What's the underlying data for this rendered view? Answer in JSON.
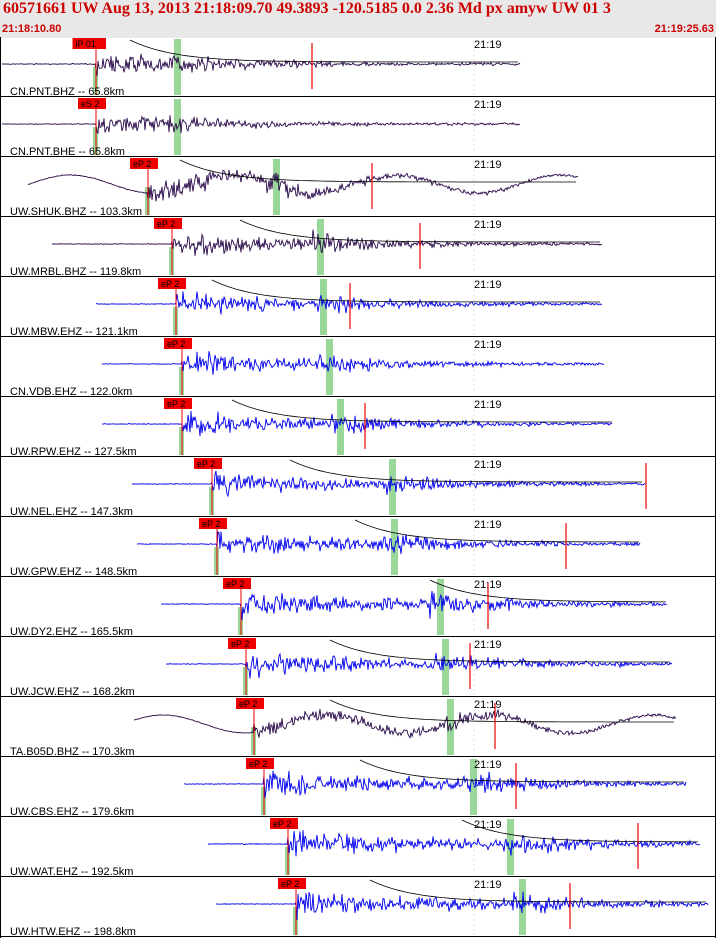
{
  "header": {
    "title": "60571661 UW Aug 13, 2013 21:18:09.70    49.3893 -120.5185  0.0 2.36 Md px amyw UW 01    3",
    "start_time": "21:18:10.80",
    "end_time": "21:19:25.63"
  },
  "minute_label": "21:19",
  "colors": {
    "broadband": "#2a0a4a",
    "short_period": "#0000ee",
    "pick": "#ee0000",
    "s_window": "#9ad89a",
    "coda": "#000000"
  },
  "traces": [
    {
      "label": "CN.PNT.BHZ -- 65.8km",
      "pick": "iP 01",
      "type": "bb",
      "p": 96,
      "s": 177,
      "end": 520,
      "amp": 0.7,
      "red": 312,
      "coda": 130,
      "lp": 0
    },
    {
      "label": "CN.PNT.BHE -- 65.8km",
      "pick": "eS 2",
      "type": "bb",
      "p": 96,
      "s": 177,
      "end": 520,
      "amp": 0.6,
      "red": 0,
      "coda": 0,
      "lp": 0
    },
    {
      "label": "UW.SHUK.BHZ -- 103.3km",
      "pick": "eP 2",
      "type": "bb",
      "p": 148,
      "s": 276,
      "end": 578,
      "amp": 0.8,
      "red": 372,
      "coda": 180,
      "lp": 1
    },
    {
      "label": "UW.MRBL.BHZ -- 119.8km",
      "pick": "eP 2",
      "type": "bb",
      "p": 172,
      "s": 320,
      "end": 602,
      "amp": 0.75,
      "red": 420,
      "coda": 240,
      "lp": 0
    },
    {
      "label": "UW.MBW.EHZ -- 121.1km",
      "pick": "eP 2",
      "type": "sp",
      "p": 176,
      "s": 323,
      "end": 602,
      "amp": 0.75,
      "red": 350,
      "coda": 212,
      "lp": 0
    },
    {
      "label": "CN.VDB.EHZ -- 122.0km",
      "pick": "eP 2",
      "type": "sp",
      "p": 182,
      "s": 329,
      "end": 604,
      "amp": 0.7,
      "red": 0,
      "coda": 0,
      "lp": 0
    },
    {
      "label": "UW.RPW.EHZ -- 127.5km",
      "pick": "eP 2",
      "type": "sp",
      "p": 182,
      "s": 340,
      "end": 612,
      "amp": 0.75,
      "red": 365,
      "coda": 232,
      "lp": 0
    },
    {
      "label": "UW.NEL.EHZ -- 147.3km",
      "pick": "eP 2",
      "type": "sp",
      "p": 212,
      "s": 392,
      "end": 645,
      "amp": 0.7,
      "red": 646,
      "coda": 290,
      "lp": 0
    },
    {
      "label": "UW.GPW.EHZ -- 148.5km",
      "pick": "eP 2",
      "type": "sp",
      "p": 217,
      "s": 394,
      "end": 640,
      "amp": 0.75,
      "red": 566,
      "coda": 355,
      "lp": 0
    },
    {
      "label": "UW.DY2.EHZ -- 165.5km",
      "pick": "eP 2",
      "type": "sp",
      "p": 241,
      "s": 440,
      "end": 667,
      "amp": 0.8,
      "red": 488,
      "coda": 430,
      "lp": 0
    },
    {
      "label": "UW.JCW.EHZ -- 168.2km",
      "pick": "eP 2",
      "type": "sp",
      "p": 246,
      "s": 445,
      "end": 672,
      "amp": 0.75,
      "red": 470,
      "coda": 330,
      "lp": 0
    },
    {
      "label": "TA.B05D.BHZ -- 170.3km",
      "pick": "eP 2",
      "type": "bb",
      "p": 254,
      "s": 450,
      "end": 676,
      "amp": 0.6,
      "red": 495,
      "coda": 330,
      "lp": 1
    },
    {
      "label": "UW.CBS.EHZ -- 179.6km",
      "pick": "eP 2",
      "type": "sp",
      "p": 264,
      "s": 473,
      "end": 686,
      "amp": 0.8,
      "red": 516,
      "coda": 360,
      "lp": 0
    },
    {
      "label": "UW.WAT.EHZ -- 192.5km",
      "pick": "eP 2",
      "type": "sp",
      "p": 288,
      "s": 510,
      "end": 700,
      "amp": 0.85,
      "red": 638,
      "coda": 462,
      "lp": 0
    },
    {
      "label": "UW.HTW.EHZ -- 198.8km",
      "pick": "eP 2",
      "type": "sp",
      "p": 296,
      "s": 522,
      "end": 708,
      "amp": 0.8,
      "red": 570,
      "coda": 370,
      "lp": 0
    }
  ]
}
